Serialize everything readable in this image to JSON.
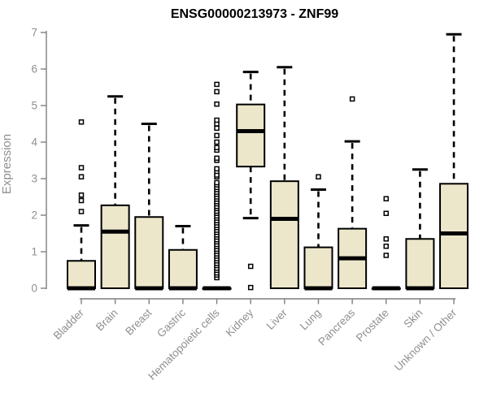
{
  "colors": {
    "title": "#000000",
    "axis": "#7f7f7f",
    "axis_text": "#8f8f8f",
    "box_fill": "#ece7cb",
    "box_line": "#000000",
    "outlier_fill": "#ffffff"
  },
  "chart_data": {
    "type": "box",
    "title": "ENSG00000213973 - ZNF99",
    "ylabel": "Expression",
    "xlabel": "",
    "ylim": [
      0,
      7
    ],
    "yticks": [
      0,
      1,
      2,
      3,
      4,
      5,
      6,
      7
    ],
    "grid": false,
    "legend": "none",
    "categories": [
      "Bladder",
      "Brain",
      "Breast",
      "Gastric",
      "Hematopoietic cells",
      "Kidney",
      "Liver",
      "Lung",
      "Pancreas",
      "Prostate",
      "Skin",
      "Unknown / Other"
    ],
    "series": [
      {
        "category": "Bladder",
        "q1": 0,
        "median": 0,
        "q3": 0.75,
        "whisker_low": 0,
        "whisker_high": 1.72,
        "outliers": [
          2.1,
          2.4,
          2.55,
          3.05,
          3.3,
          4.55
        ]
      },
      {
        "category": "Brain",
        "q1": 0,
        "median": 1.55,
        "q3": 2.27,
        "whisker_low": 0,
        "whisker_high": 5.25,
        "outliers": []
      },
      {
        "category": "Breast",
        "q1": 0,
        "median": 0,
        "q3": 1.95,
        "whisker_low": 0,
        "whisker_high": 4.5,
        "outliers": []
      },
      {
        "category": "Gastric",
        "q1": 0,
        "median": 0,
        "q3": 1.05,
        "whisker_low": 0,
        "whisker_high": 1.7,
        "outliers": []
      },
      {
        "category": "Hematopoietic cells",
        "q1": 0,
        "median": 0,
        "q3": 0,
        "whisker_low": 0,
        "whisker_high": 0,
        "outliers": [
          0.29,
          0.36,
          0.42,
          0.49,
          0.55,
          0.62,
          0.68,
          0.75,
          0.81,
          0.88,
          0.94,
          1.01,
          1.07,
          1.14,
          1.2,
          1.27,
          1.33,
          1.4,
          1.46,
          1.53,
          1.59,
          1.66,
          1.72,
          1.79,
          1.85,
          1.92,
          1.98,
          2.05,
          2.11,
          2.18,
          2.24,
          2.31,
          2.37,
          2.44,
          2.5,
          2.57,
          2.63,
          2.7,
          2.76,
          2.83,
          2.89,
          3.05,
          3.1,
          3.2,
          3.27,
          3.5,
          3.56,
          3.78,
          3.85,
          4.0,
          4.18,
          4.38,
          4.5,
          4.6,
          5.04,
          5.38,
          5.58
        ]
      },
      {
        "category": "Kidney",
        "q1": 3.33,
        "median": 4.3,
        "q3": 5.03,
        "whisker_low": 1.92,
        "whisker_high": 5.92,
        "outliers": [
          0.6,
          0.02
        ]
      },
      {
        "category": "Liver",
        "q1": 0,
        "median": 1.9,
        "q3": 2.93,
        "whisker_low": 0,
        "whisker_high": 6.05,
        "outliers": []
      },
      {
        "category": "Lung",
        "q1": 0,
        "median": 0,
        "q3": 1.12,
        "whisker_low": 0,
        "whisker_high": 2.7,
        "outliers": [
          3.05
        ]
      },
      {
        "category": "Pancreas",
        "q1": 0,
        "median": 0.82,
        "q3": 1.63,
        "whisker_low": 0,
        "whisker_high": 4.02,
        "outliers": [
          5.18
        ]
      },
      {
        "category": "Prostate",
        "q1": 0,
        "median": 0,
        "q3": 0,
        "whisker_low": 0,
        "whisker_high": 0,
        "outliers": [
          0.9,
          1.15,
          1.35,
          2.05,
          2.45
        ]
      },
      {
        "category": "Skin",
        "q1": 0,
        "median": 0,
        "q3": 1.35,
        "whisker_low": 0,
        "whisker_high": 3.25,
        "outliers": []
      },
      {
        "category": "Unknown / Other",
        "q1": 0,
        "median": 1.5,
        "q3": 2.86,
        "whisker_low": 0,
        "whisker_high": 6.95,
        "outliers": []
      }
    ]
  }
}
